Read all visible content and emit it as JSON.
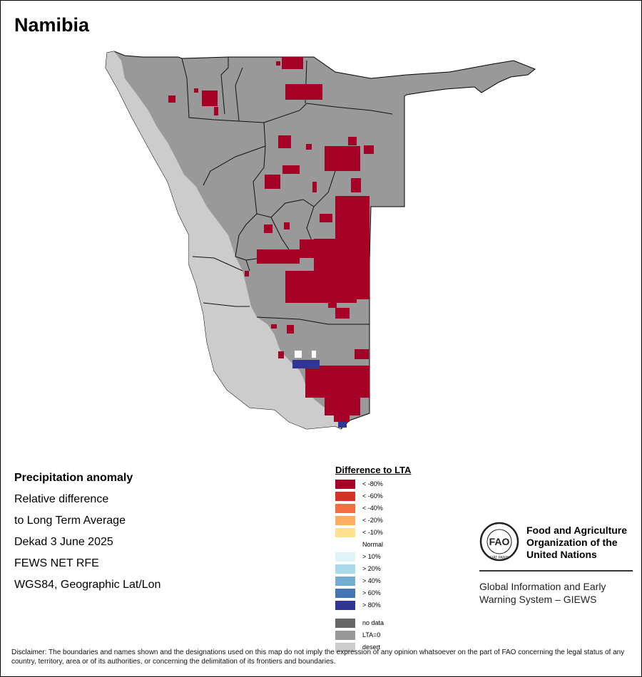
{
  "title": "Namibia",
  "info": {
    "heading": "Precipitation anomaly",
    "line1": "Relative difference",
    "line2": "to Long Term Average",
    "line3": "Dekad 3 June 2025",
    "line4": "FEWS NET RFE",
    "line5": "WGS84, Geographic Lat/Lon"
  },
  "legend": {
    "title": "Difference to LTA",
    "items": [
      {
        "label": "< -80%",
        "color": "#a50026"
      },
      {
        "label": "< -60%",
        "color": "#d73027"
      },
      {
        "label": "< -40%",
        "color": "#f46d43"
      },
      {
        "label": "< -20%",
        "color": "#fdae61"
      },
      {
        "label": "< -10%",
        "color": "#fee090"
      },
      {
        "label": "Normal",
        "color": "#ffffff"
      },
      {
        "label": "> 10%",
        "color": "#e0f3f8"
      },
      {
        "label": "> 20%",
        "color": "#abd9e9"
      },
      {
        "label": "> 40%",
        "color": "#74add1"
      },
      {
        "label": "> 60%",
        "color": "#4575b4"
      },
      {
        "label": "> 80%",
        "color": "#313695"
      }
    ],
    "extra": [
      {
        "label": "no data",
        "color": "#666666"
      },
      {
        "label": "LTA=0",
        "color": "#999999"
      },
      {
        "label": "desert",
        "color": "#cccccc"
      }
    ]
  },
  "colors": {
    "land": "#999999",
    "desert": "#cccccc",
    "deficit": "#a50026",
    "surplus": "#313695"
  },
  "fao": {
    "name_line1": "Food and Agriculture",
    "name_line2": "Organization of the",
    "name_line3": "United Nations",
    "giews_line1": "Global Information and Early",
    "giews_line2": "Warning System – GIEWS",
    "logo_text": "FAO",
    "logo_motto": "FIAT PANIS"
  },
  "disclaimer": "Disclaimer: The boundaries and names shown and the designations used on this map do not imply the expression of any opinion whatsoever on the part of FAO concerning the legal status of any country, territory, area or of its authorities, or concerning the delimitation of its frontiers and boundaries."
}
